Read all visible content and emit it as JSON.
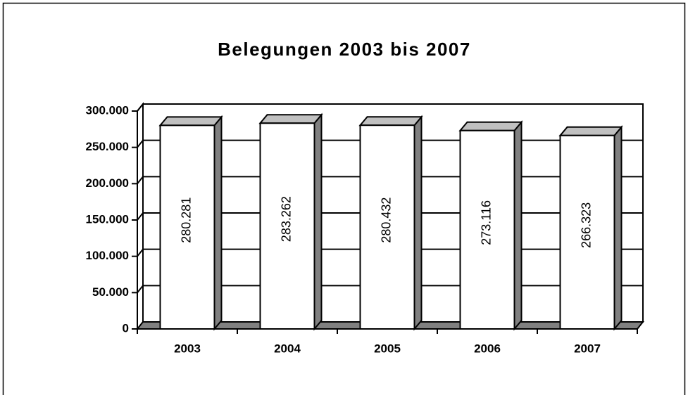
{
  "chart_data": {
    "type": "bar3d",
    "title": "Belegungen 2003 bis 2007",
    "categories": [
      "2003",
      "2004",
      "2005",
      "2006",
      "2007"
    ],
    "values": [
      280281,
      283262,
      280432,
      273116,
      266323
    ],
    "value_labels": [
      "280.281",
      "283.262",
      "280.432",
      "273.116",
      "266.323"
    ],
    "color": "#ffffff",
    "ylim": [
      0,
      300000
    ],
    "yticks": [
      0,
      {
        "value": 50000,
        "label": "50.000"
      },
      {
        "value": 100000,
        "label": "100.000"
      },
      {
        "value": 150000,
        "label": "150.000"
      },
      {
        "value": 200000,
        "label": "200.000"
      },
      {
        "value": 250000,
        "label": "250.000"
      },
      {
        "value": 300000,
        "label": "300.000"
      }
    ],
    "grid": true
  }
}
